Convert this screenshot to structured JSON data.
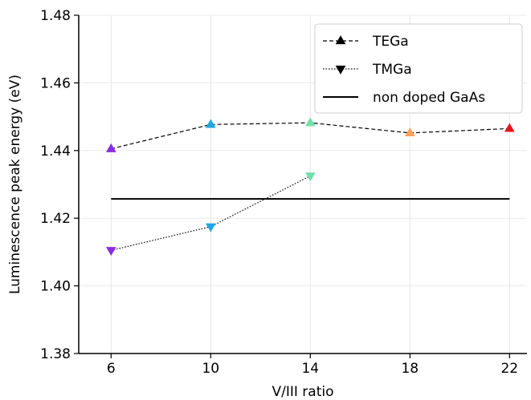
{
  "chart_data": {
    "type": "line",
    "xlabel": "V/III ratio",
    "ylabel": "Luminescence peak energy (eV)",
    "x_ticks": [
      6,
      10,
      14,
      18,
      22
    ],
    "y_ticks": [
      "1.38",
      "1.40",
      "1.42",
      "1.44",
      "1.46",
      "1.48"
    ],
    "xlim": [
      4.7,
      22.7
    ],
    "ylim": [
      1.38,
      1.48
    ],
    "grid": true,
    "legend_position": "top-right",
    "series": [
      {
        "name": "TEGa",
        "marker": "triangle-up",
        "line_style": "dashed",
        "x": [
          6,
          10,
          14,
          18,
          22
        ],
        "y": [
          1.4405,
          1.4477,
          1.4482,
          1.4452,
          1.4465
        ],
        "point_colors": [
          "#8b2be2",
          "#1fa6e0",
          "#6fe0a8",
          "#ffa15a",
          "#e8141c"
        ]
      },
      {
        "name": "TMGa",
        "marker": "triangle-down",
        "line_style": "dotted",
        "x": [
          6,
          10,
          14
        ],
        "y": [
          1.4105,
          1.4175,
          1.4325
        ],
        "point_colors": [
          "#8b2be2",
          "#1fa6e0",
          "#6fe0a8"
        ]
      },
      {
        "name": "non doped GaAs",
        "line_style": "solid",
        "x": [
          6,
          22
        ],
        "y": [
          1.4257,
          1.4257
        ]
      }
    ]
  }
}
